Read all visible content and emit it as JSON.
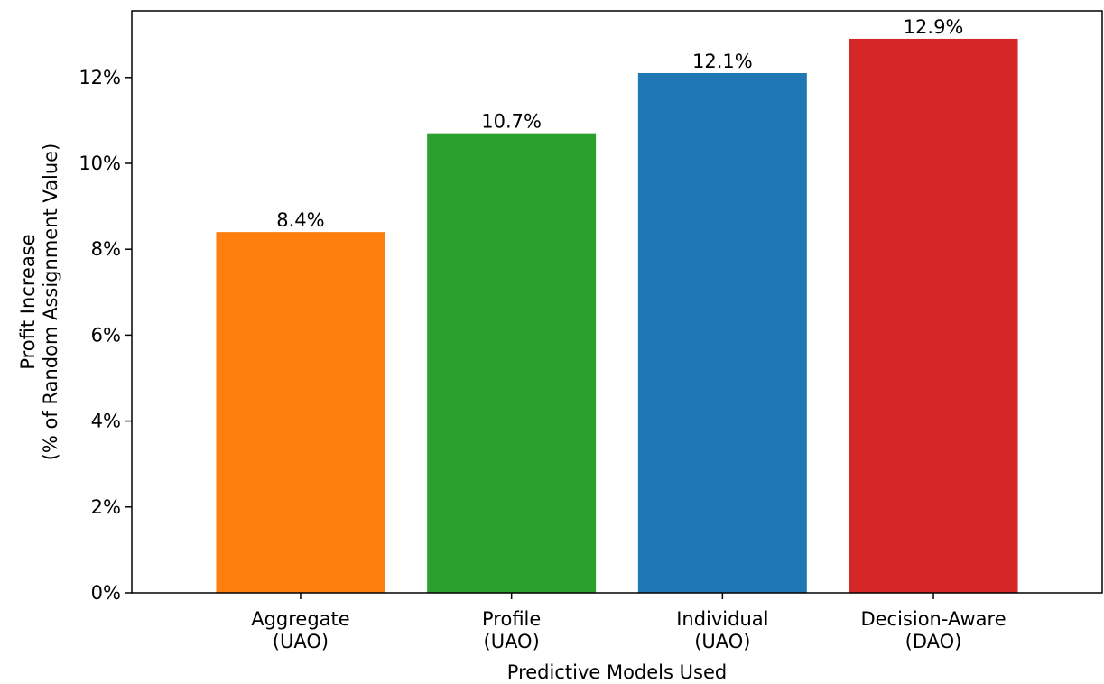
{
  "chart_data": {
    "type": "bar",
    "title": "",
    "xlabel": "Predictive Models Used",
    "ylabel_lines": [
      "Profit Increase",
      "(% of Random Assignment Value)"
    ],
    "categories": [
      [
        "Aggregate",
        "(UAO)"
      ],
      [
        "Profile",
        "(UAO)"
      ],
      [
        "Individual",
        "(UAO)"
      ],
      [
        "Decision-Aware",
        "(DAO)"
      ]
    ],
    "values": [
      8.4,
      10.7,
      12.1,
      12.9
    ],
    "value_labels": [
      "8.4%",
      "10.7%",
      "12.1%",
      "12.9%"
    ],
    "colors": [
      "#ff7f0e",
      "#2ca02c",
      "#1f77b4",
      "#d62728"
    ],
    "yticks": [
      0,
      2,
      4,
      6,
      8,
      10,
      12
    ],
    "ytick_labels": [
      "0%",
      "2%",
      "4%",
      "6%",
      "8%",
      "10%",
      "12%"
    ],
    "ylim": [
      0,
      13.55
    ],
    "grid": false,
    "legend": "none"
  }
}
